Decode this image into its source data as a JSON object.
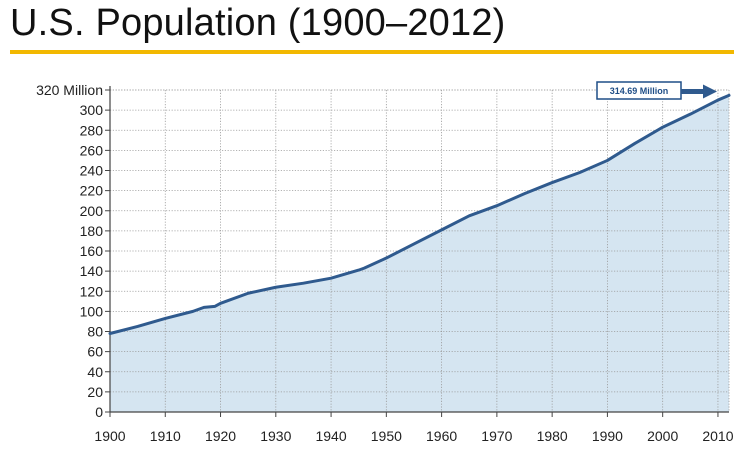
{
  "title": "U.S. Population (1900–2012)",
  "colors": {
    "title_bar": "#f2b800",
    "line": "#2f5a8e",
    "area": "#d5e5f1",
    "grid": "#9a9a9a",
    "axis": "#444444",
    "callout_text": "#1f4e87"
  },
  "chart_data": {
    "type": "area",
    "title": "U.S. Population (1900–2012)",
    "xlabel": "",
    "ylabel": "",
    "xlim": [
      1900,
      2012
    ],
    "ylim": [
      0,
      320
    ],
    "grid": true,
    "x_ticks": [
      1900,
      1910,
      1920,
      1930,
      1940,
      1950,
      1960,
      1970,
      1980,
      1990,
      2000,
      2010
    ],
    "y_ticks": [
      0,
      20,
      40,
      60,
      80,
      100,
      120,
      140,
      160,
      180,
      200,
      220,
      240,
      260,
      280,
      300,
      320
    ],
    "y_tick_labels": [
      "0",
      "20",
      "40",
      "60",
      "80",
      "100",
      "120",
      "140",
      "160",
      "180",
      "200",
      "220",
      "240",
      "260",
      "280",
      "300",
      "320 Million"
    ],
    "series": [
      {
        "x": [
          1900,
          1905,
          1910,
          1915,
          1917,
          1919,
          1920,
          1925,
          1930,
          1935,
          1940,
          1945,
          1946,
          1950,
          1955,
          1960,
          1965,
          1970,
          1975,
          1980,
          1985,
          1990,
          1995,
          2000,
          2005,
          2010,
          2012
        ],
        "y": [
          78,
          85,
          93,
          100,
          104,
          105,
          108,
          118,
          124,
          128,
          133,
          141,
          143,
          153,
          167,
          181,
          195,
          205,
          217,
          228,
          238,
          250,
          267,
          283,
          296,
          310,
          314.69
        ]
      }
    ],
    "annotations": [
      {
        "x": 2012,
        "y": 314.69,
        "text": "314.69 Million"
      }
    ]
  }
}
